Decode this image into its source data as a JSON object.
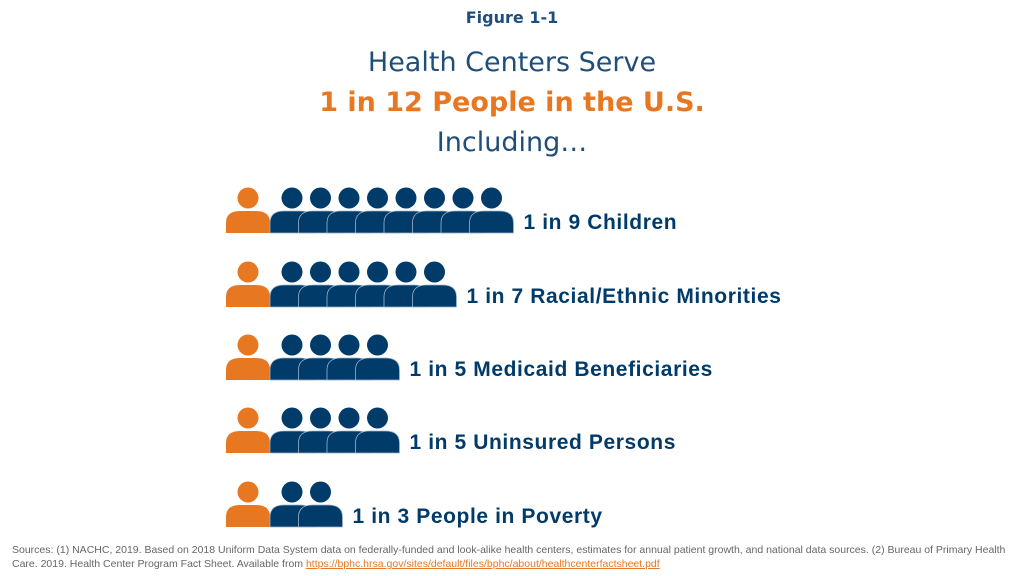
{
  "figure_label": "Figure 1-1",
  "title_line1": "Health Centers Serve",
  "title_line2": "1 in 12 People in the U.S.",
  "title_line3": "Including…",
  "colors": {
    "highlight": "#e87722",
    "others": "#003b6a",
    "title": "#1f4e79"
  },
  "chart_data": {
    "type": "pictogram",
    "icon": "person-icon",
    "rows": [
      {
        "label": "1 in 9 Children",
        "served": 1,
        "total": 9
      },
      {
        "label": "1 in 7 Racial/Ethnic Minorities",
        "served": 1,
        "total": 7
      },
      {
        "label": "1 in 5 Medicaid Beneficiaries",
        "served": 1,
        "total": 5
      },
      {
        "label": "1 in 5 Uninsured Persons",
        "served": 1,
        "total": 5
      },
      {
        "label": "1 in 3 People in Poverty",
        "served": 1,
        "total": 3
      }
    ]
  },
  "sources": {
    "text": "Sources: (1) NACHC, 2019. Based on 2018 Uniform Data System data on federally-funded and look-alike health centers, estimates for annual patient growth, and national data sources. (2) Bureau of Primary Health Care. 2019. Health Center Program Fact Sheet. Available from ",
    "link": "https://bphc.hrsa.gov/sites/default/files/bphc/about/healthcenterfactsheet.pdf"
  }
}
